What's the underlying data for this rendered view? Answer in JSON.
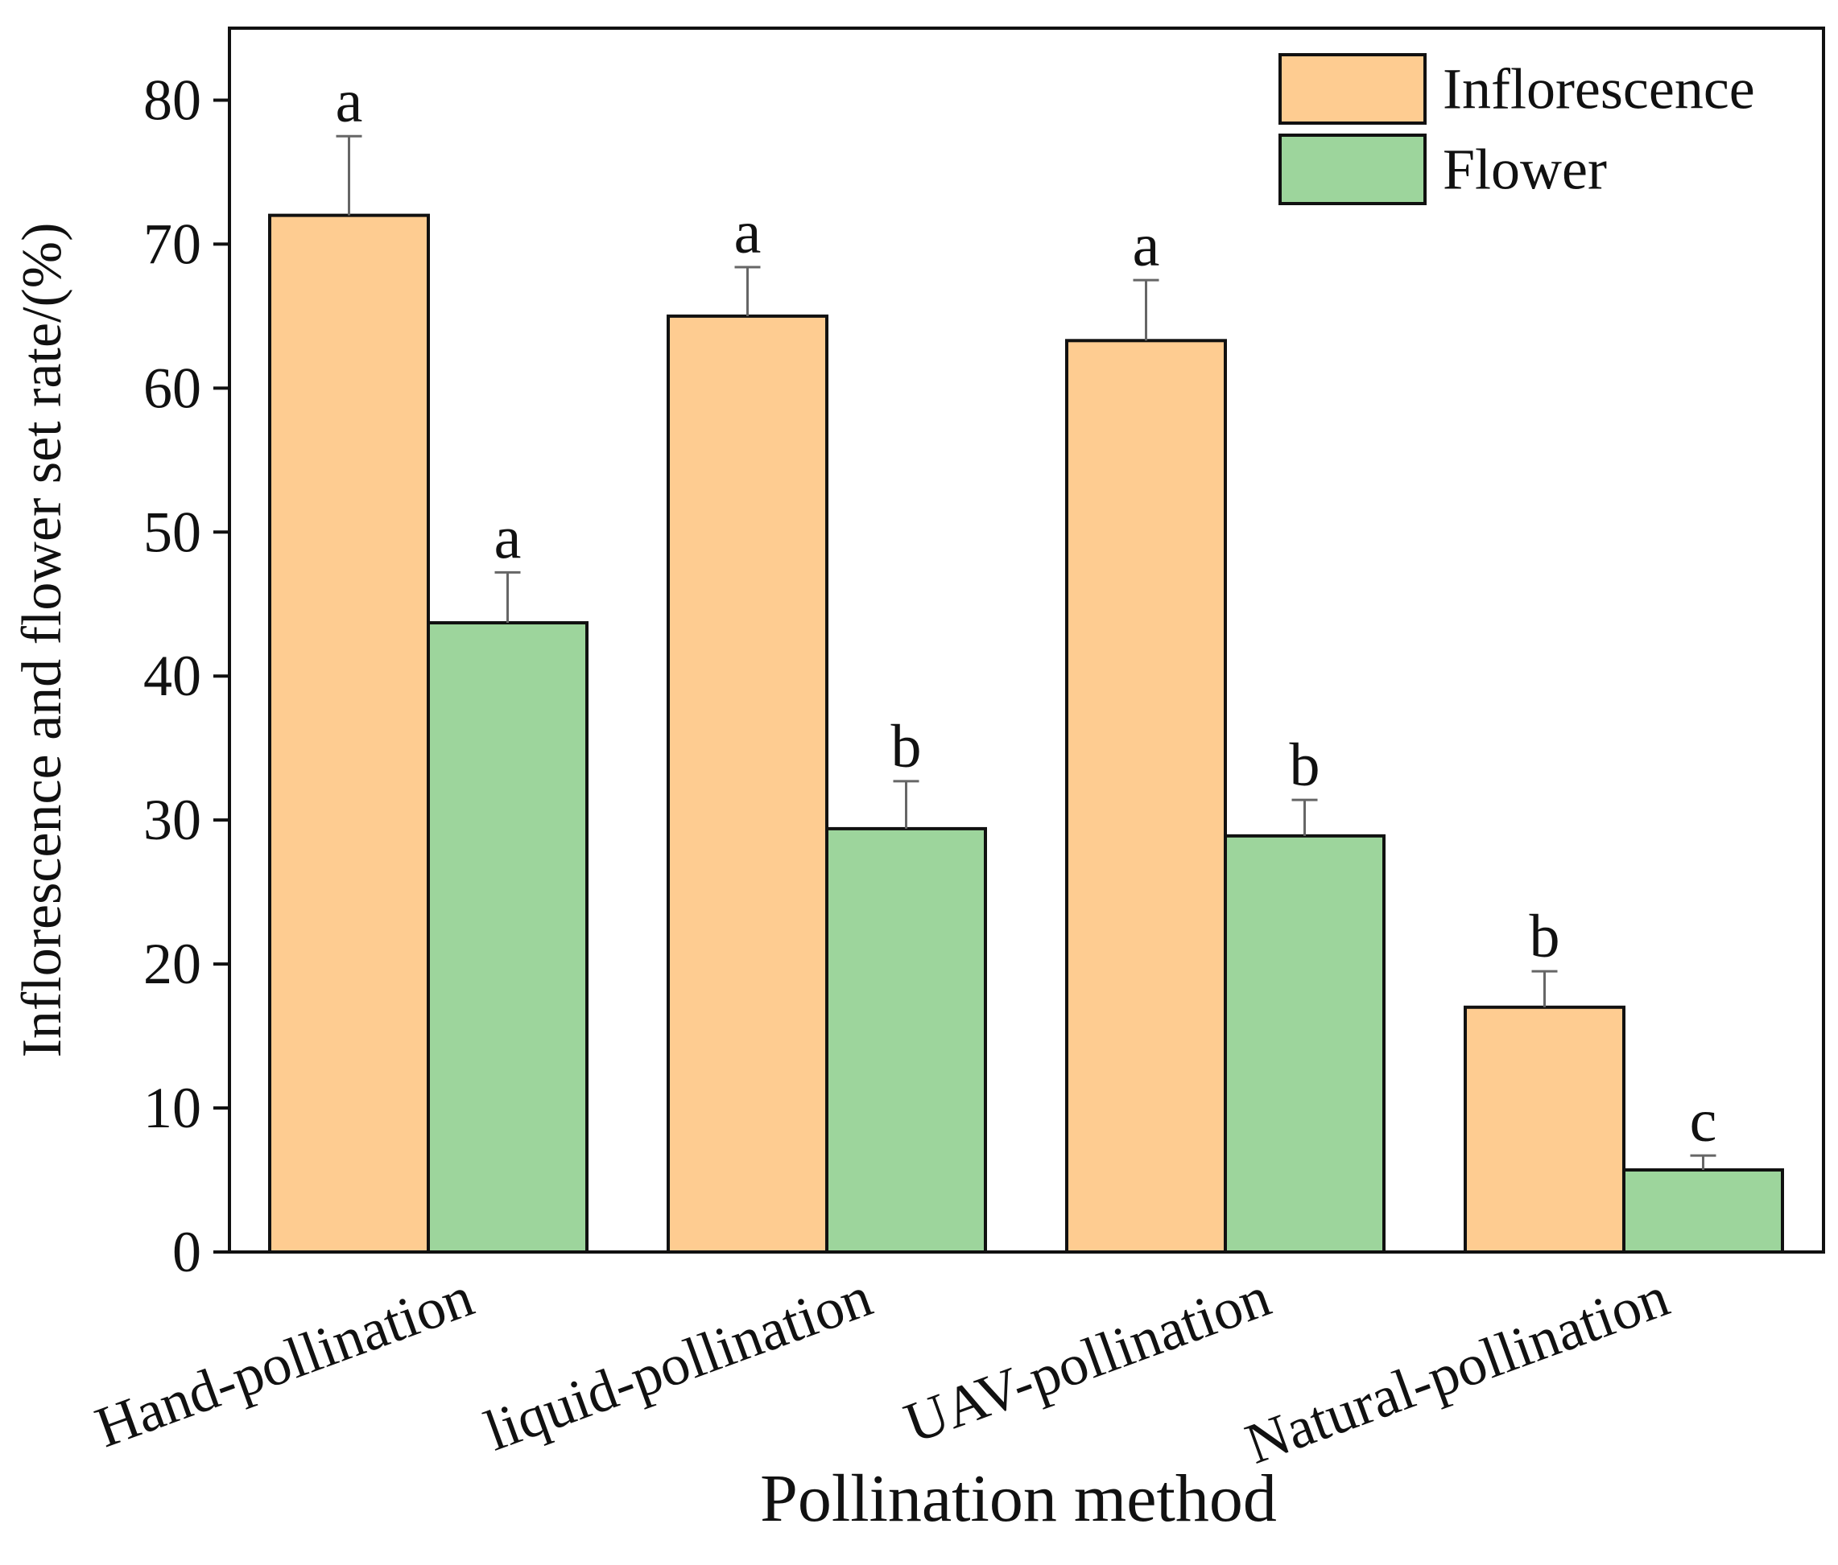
{
  "chart_data": {
    "type": "bar",
    "title": "",
    "xlabel": "Pollination method",
    "ylabel": "Inflorescence and flower set rate/(%)",
    "ylim": [
      0,
      85
    ],
    "yticks": [
      0,
      10,
      20,
      30,
      40,
      50,
      60,
      70,
      80
    ],
    "categories": [
      "Hand-pollination",
      "liquid-pollination",
      "UAV-pollination",
      "Natural-pollination"
    ],
    "series": [
      {
        "name": "Inflorescence",
        "color": "#FECC91",
        "values": [
          72.0,
          65.0,
          63.3,
          17.0
        ],
        "errors": [
          5.5,
          3.4,
          4.2,
          2.5
        ],
        "significance": [
          "a",
          "a",
          "a",
          "b"
        ]
      },
      {
        "name": "Flower",
        "color": "#9DD59C",
        "values": [
          43.7,
          29.4,
          28.9,
          5.7
        ],
        "errors": [
          3.5,
          3.3,
          2.5,
          1.0
        ],
        "significance": [
          "a",
          "b",
          "b",
          "c"
        ]
      }
    ],
    "legend_position": "top-right",
    "grid": false
  }
}
